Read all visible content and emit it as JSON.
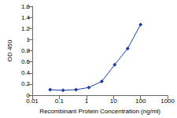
{
  "chart_data": {
    "type": "line",
    "xlabel": "Recombinant Protein Concentration (ng/ml)",
    "ylabel": "OD 450",
    "x": [
      0.0457,
      0.137,
      0.412,
      1.23,
      3.7,
      11.1,
      33.3,
      100
    ],
    "values": [
      0.1,
      0.09,
      0.1,
      0.14,
      0.25,
      0.55,
      0.84,
      1.27
    ],
    "color": "#1f3f9a",
    "marker": "diamond",
    "log": "x",
    "xlim": [
      0.01,
      1000
    ],
    "xticks": [
      0.01,
      0.1,
      1,
      10,
      100,
      1000
    ],
    "ylim": [
      0,
      1.6
    ],
    "yticks": [
      0,
      0.2,
      0.4,
      0.6,
      0.8,
      1,
      1.2,
      1.4,
      1.6
    ],
    "grid": false
  }
}
